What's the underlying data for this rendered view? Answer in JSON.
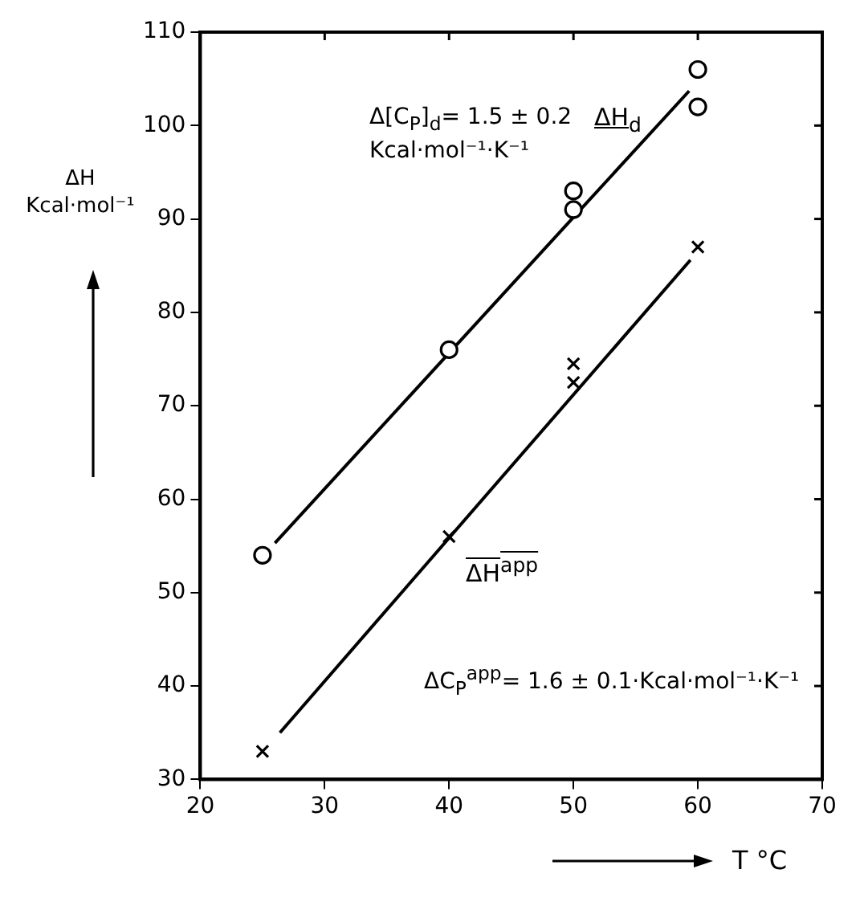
{
  "chart_data": {
    "type": "scatter",
    "xlabel": "T °C",
    "ylabel": "ΔH Kcal·mol⁻¹",
    "annotations": [
      "Δ[C$_{P}$]$_{d}$= 1.5 ± 0.2 Kcal·mol⁻¹·K⁻¹",
      "ΔC$_{P}$$^{app}$= 1.6 ± 0.1·Kcal·mol⁻¹·K⁻¹"
    ],
    "xlim": [
      20,
      70
    ],
    "xticks": [
      20,
      30,
      40,
      50,
      60,
      70
    ],
    "ylim": [
      30,
      110
    ],
    "yticks": [
      30,
      40,
      50,
      60,
      70,
      80,
      90,
      100,
      110
    ],
    "grid": false,
    "series": [
      {
        "name": "ΔH$_{d}$",
        "type": "scatter",
        "marker": "circle",
        "color": "#000000",
        "x": [
          25,
          40,
          50,
          50,
          60,
          60
        ],
        "values": [
          54,
          76,
          93,
          91,
          106,
          102
        ]
      },
      {
        "name": "ΔH$^{app}$",
        "type": "scatter",
        "marker": "cross",
        "color": "#000000",
        "x": [
          25,
          40,
          50,
          50,
          60
        ],
        "values": [
          33,
          56,
          74.5,
          72.5,
          87
        ]
      },
      {
        "type": "line",
        "marker": "none",
        "color": "#000000",
        "x": [
          26,
          59.3
        ],
        "values": [
          55.3,
          103.7
        ]
      },
      {
        "type": "line",
        "marker": "none",
        "color": "#000000",
        "x": [
          26.4,
          59.4
        ],
        "values": [
          35,
          85.6
        ]
      }
    ]
  }
}
